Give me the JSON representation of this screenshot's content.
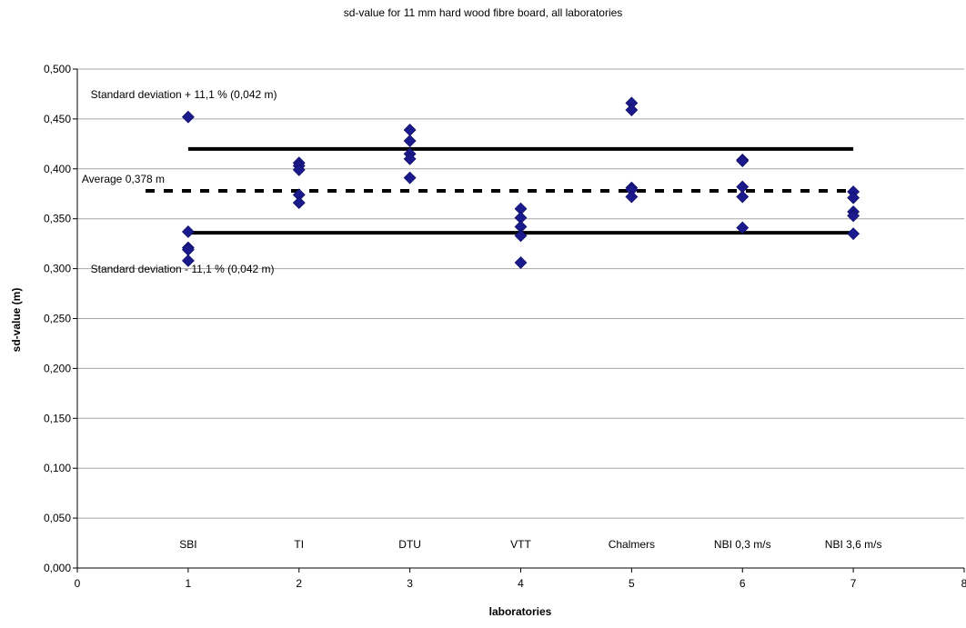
{
  "chart_data": {
    "type": "scatter",
    "title": "sd-value for 11 mm hard wood fibre board, all laboratories",
    "xlabel": "laboratories",
    "ylabel": "sd-value (m)",
    "xlim": [
      0,
      8
    ],
    "ylim": [
      0,
      0.5
    ],
    "x_ticks": [
      "0",
      "1",
      "2",
      "3",
      "4",
      "5",
      "6",
      "7",
      "8"
    ],
    "y_ticks": [
      "0,000",
      "0,050",
      "0,100",
      "0,150",
      "0,200",
      "0,250",
      "0,300",
      "0,350",
      "0,400",
      "0,450",
      "0,500"
    ],
    "grid": "horizontal",
    "marker_color": "#1a1a8c",
    "line_color": "#000000",
    "category_labels": [
      {
        "x": 1,
        "label": "SBI"
      },
      {
        "x": 2,
        "label": "TI"
      },
      {
        "x": 3,
        "label": "DTU"
      },
      {
        "x": 4,
        "label": "VTT"
      },
      {
        "x": 5,
        "label": "Chalmers"
      },
      {
        "x": 6,
        "label": "NBI 0,3 m/s"
      },
      {
        "x": 7,
        "label": "NBI 3,6 m/s"
      }
    ],
    "series": [
      {
        "points": [
          [
            1,
            0.452
          ],
          [
            1,
            0.337
          ],
          [
            1,
            0.321
          ],
          [
            1,
            0.319
          ],
          [
            1,
            0.308
          ],
          [
            2,
            0.406
          ],
          [
            2,
            0.403
          ],
          [
            2,
            0.399
          ],
          [
            2,
            0.374
          ],
          [
            2,
            0.366
          ],
          [
            3,
            0.439
          ],
          [
            3,
            0.428
          ],
          [
            3,
            0.415
          ],
          [
            3,
            0.41
          ],
          [
            3,
            0.391
          ],
          [
            4,
            0.36
          ],
          [
            4,
            0.351
          ],
          [
            4,
            0.342
          ],
          [
            4,
            0.333
          ],
          [
            4,
            0.306
          ],
          [
            5,
            0.466
          ],
          [
            5,
            0.459
          ],
          [
            5,
            0.381
          ],
          [
            5,
            0.379
          ],
          [
            5,
            0.372
          ],
          [
            6,
            0.409
          ],
          [
            6,
            0.408
          ],
          [
            6,
            0.382
          ],
          [
            6,
            0.372
          ],
          [
            6,
            0.341
          ],
          [
            7,
            0.377
          ],
          [
            7,
            0.371
          ],
          [
            7,
            0.357
          ],
          [
            7,
            0.353
          ],
          [
            7,
            0.335
          ]
        ]
      }
    ],
    "reference_lines": [
      {
        "y": 0.42,
        "x_range": [
          1,
          7
        ],
        "style": "solid",
        "label": "Standard deviation + 11,1 % (0,042 m)"
      },
      {
        "y": 0.378,
        "x_range": [
          0,
          7
        ],
        "style": "dashed",
        "label": "Average 0,378 m"
      },
      {
        "y": 0.336,
        "x_range": [
          1,
          7
        ],
        "style": "solid",
        "label": "Standard deviation - 11,1 % (0,042 m)"
      }
    ]
  }
}
